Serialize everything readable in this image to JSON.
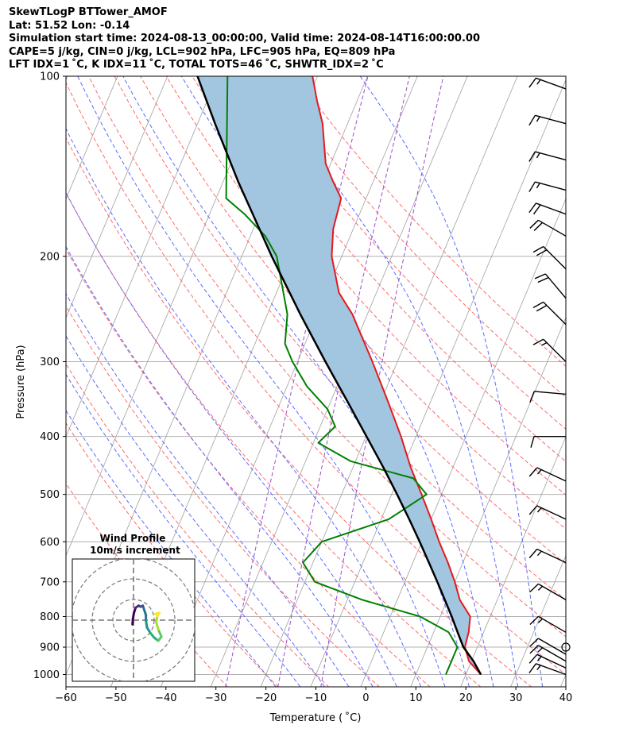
{
  "header": {
    "line1": "SkewTLogP BTTower_AMOF",
    "line2": "Lat: 51.52   Lon: -0.14",
    "line3": "Simulation start time: 2024-08-13_00:00:00, Valid time: 2024-08-14T16:00:00.00",
    "line4": "CAPE=5 j/kg, CIN=0 j/kg, LCL=902 hPa, LFC=905 hPa, EQ=809 hPa",
    "line5": "LFT IDX=1 ˚C, K IDX=11 ˚C, TOTAL TOTS=46 ˚C, SHWTR_IDX=2 ˚C"
  },
  "chart_data": {
    "type": "skewt",
    "xlabel": "Temperature ( ˚C)",
    "ylabel": "Pressure (hPa)",
    "xlim": [
      -60,
      40
    ],
    "ylim": [
      1050,
      100
    ],
    "xticks": [
      -60,
      -50,
      -40,
      -30,
      -20,
      -10,
      0,
      10,
      20,
      30,
      40
    ],
    "xtick_labels": [
      "−60",
      "−50",
      "−40",
      "−30",
      "−20",
      "−10",
      "0",
      "10",
      "20",
      "30",
      "40"
    ],
    "yticks": [
      1000,
      900,
      800,
      700,
      600,
      500,
      400,
      300,
      200,
      100
    ],
    "ytick_labels": [
      "1000",
      "900",
      "800",
      "700",
      "600",
      "500",
      "400",
      "300",
      "200",
      "100"
    ],
    "colors": {
      "temperature": "#e31a1c",
      "dewpoint": "#008000",
      "parcel": "#000000",
      "cape_fill": "#a3c6e0",
      "dry_adiabat": "#ff6b6b",
      "moist_adiabat": "#5a6cff",
      "mixing_ratio": "#9b4dca",
      "isotherm": "#a0a0a0",
      "grid": "#b0b0b0"
    },
    "temperature_profile": [
      {
        "p": 1000,
        "t": 23.0
      },
      {
        "p": 950,
        "t": 19.5
      },
      {
        "p": 900,
        "t": 17.5
      },
      {
        "p": 850,
        "t": 17.0
      },
      {
        "p": 800,
        "t": 16.0
      },
      {
        "p": 750,
        "t": 12.5
      },
      {
        "p": 700,
        "t": 10.0
      },
      {
        "p": 650,
        "t": 7.0
      },
      {
        "p": 600,
        "t": 3.5
      },
      {
        "p": 550,
        "t": 0.0
      },
      {
        "p": 500,
        "t": -4.0
      },
      {
        "p": 450,
        "t": -8.5
      },
      {
        "p": 400,
        "t": -13.0
      },
      {
        "p": 350,
        "t": -18.5
      },
      {
        "p": 300,
        "t": -25.0
      },
      {
        "p": 250,
        "t": -33.0
      },
      {
        "p": 230,
        "t": -37.5
      },
      {
        "p": 200,
        "t": -42.0
      },
      {
        "p": 180,
        "t": -44.0
      },
      {
        "p": 160,
        "t": -45.0
      },
      {
        "p": 150,
        "t": -48.0
      },
      {
        "p": 140,
        "t": -51.0
      },
      {
        "p": 120,
        "t": -55.0
      },
      {
        "p": 110,
        "t": -58.0
      },
      {
        "p": 100,
        "t": -61.0
      }
    ],
    "dewpoint_profile": [
      {
        "p": 1000,
        "t": 16.0
      },
      {
        "p": 950,
        "t": 16.0
      },
      {
        "p": 900,
        "t": 16.0
      },
      {
        "p": 850,
        "t": 13.0
      },
      {
        "p": 800,
        "t": 6.0
      },
      {
        "p": 750,
        "t": -7.0
      },
      {
        "p": 700,
        "t": -18.0
      },
      {
        "p": 650,
        "t": -22.0
      },
      {
        "p": 600,
        "t": -20.0
      },
      {
        "p": 550,
        "t": -8.5
      },
      {
        "p": 500,
        "t": -3.0
      },
      {
        "p": 470,
        "t": -7.0
      },
      {
        "p": 440,
        "t": -21.0
      },
      {
        "p": 410,
        "t": -29.0
      },
      {
        "p": 385,
        "t": -27.0
      },
      {
        "p": 360,
        "t": -30.0
      },
      {
        "p": 330,
        "t": -36.0
      },
      {
        "p": 300,
        "t": -41.0
      },
      {
        "p": 280,
        "t": -44.0
      },
      {
        "p": 250,
        "t": -46.0
      },
      {
        "p": 200,
        "t": -53.0
      },
      {
        "p": 185,
        "t": -57.0
      },
      {
        "p": 170,
        "t": -63.0
      },
      {
        "p": 160,
        "t": -68.0
      },
      {
        "p": 100,
        "t": -78.0
      }
    ],
    "parcel_profile": [
      {
        "p": 1000,
        "t": 23.0
      },
      {
        "p": 950,
        "t": 20.4
      },
      {
        "p": 900,
        "t": 17.2
      },
      {
        "p": 850,
        "t": 14.8
      },
      {
        "p": 800,
        "t": 12.3
      },
      {
        "p": 750,
        "t": 9.5
      },
      {
        "p": 700,
        "t": 6.5
      },
      {
        "p": 650,
        "t": 3.2
      },
      {
        "p": 600,
        "t": -0.4
      },
      {
        "p": 550,
        "t": -4.4
      },
      {
        "p": 500,
        "t": -8.9
      },
      {
        "p": 450,
        "t": -14.0
      },
      {
        "p": 400,
        "t": -19.9
      },
      {
        "p": 350,
        "t": -26.6
      },
      {
        "p": 300,
        "t": -34.4
      },
      {
        "p": 250,
        "t": -43.4
      },
      {
        "p": 200,
        "t": -54.0
      },
      {
        "p": 150,
        "t": -67.0
      },
      {
        "p": 120,
        "t": -76.5
      },
      {
        "p": 100,
        "t": -84.0
      }
    ],
    "dry_adiabats_theta_c": [
      -30,
      -20,
      -10,
      0,
      10,
      20,
      30,
      40,
      50,
      60,
      70,
      80,
      90,
      100,
      110,
      120,
      130
    ],
    "moist_adiabats_c": [
      -20,
      -15,
      -10,
      -5,
      0,
      5,
      10,
      15,
      20,
      25,
      30,
      35
    ],
    "mixing_ratio_lines_gkg": [
      0.4,
      1,
      2
    ],
    "wind_barbs": [
      {
        "p": 1000,
        "dir": 290,
        "spd_kt": 15
      },
      {
        "p": 975,
        "dir": 295,
        "spd_kt": 15
      },
      {
        "p": 950,
        "dir": 300,
        "spd_kt": 15
      },
      {
        "p": 925,
        "dir": 300,
        "spd_kt": 10
      },
      {
        "p": 900,
        "dir": 0,
        "spd_kt": 0
      },
      {
        "p": 850,
        "dir": 300,
        "spd_kt": 15
      },
      {
        "p": 750,
        "dir": 300,
        "spd_kt": 15
      },
      {
        "p": 650,
        "dir": 295,
        "spd_kt": 15
      },
      {
        "p": 550,
        "dir": 295,
        "spd_kt": 15
      },
      {
        "p": 475,
        "dir": 295,
        "spd_kt": 15
      },
      {
        "p": 400,
        "dir": 270,
        "spd_kt": 10
      },
      {
        "p": 340,
        "dir": 275,
        "spd_kt": 10
      },
      {
        "p": 300,
        "dir": 315,
        "spd_kt": 15
      },
      {
        "p": 260,
        "dir": 315,
        "spd_kt": 20
      },
      {
        "p": 235,
        "dir": 320,
        "spd_kt": 20
      },
      {
        "p": 210,
        "dir": 315,
        "spd_kt": 20
      },
      {
        "p": 185,
        "dir": 300,
        "spd_kt": 20
      },
      {
        "p": 170,
        "dir": 290,
        "spd_kt": 20
      },
      {
        "p": 155,
        "dir": 285,
        "spd_kt": 15
      },
      {
        "p": 138,
        "dir": 285,
        "spd_kt": 15
      },
      {
        "p": 120,
        "dir": 285,
        "spd_kt": 15
      },
      {
        "p": 105,
        "dir": 290,
        "spd_kt": 15
      }
    ],
    "inset": {
      "title": "Wind Profile",
      "subtitle": "10m/s increment",
      "hodograph": [
        {
          "u": -0.5,
          "v": -2.0
        },
        {
          "u": -0.3,
          "v": 0.5
        },
        {
          "u": 0.2,
          "v": 3.5
        },
        {
          "u": 1.0,
          "v": 6.0
        },
        {
          "u": 2.5,
          "v": 7.0
        },
        {
          "u": 3.5,
          "v": 6.5
        },
        {
          "u": 4.5,
          "v": 7.0
        },
        {
          "u": 5.0,
          "v": 5.5
        },
        {
          "u": 6.0,
          "v": 2.5
        },
        {
          "u": 6.0,
          "v": 0.0
        },
        {
          "u": 6.5,
          "v": -3.5
        },
        {
          "u": 8.0,
          "v": -6.0
        },
        {
          "u": 10.0,
          "v": -8.5
        },
        {
          "u": 12.0,
          "v": -10.0
        },
        {
          "u": 13.5,
          "v": -8.0
        },
        {
          "u": 12.0,
          "v": -4.5
        },
        {
          "u": 11.0,
          "v": -1.0
        },
        {
          "u": 11.5,
          "v": 2.0
        },
        {
          "u": 12.5,
          "v": 3.5
        },
        {
          "u": 10.5,
          "v": 3.0
        }
      ]
    }
  }
}
